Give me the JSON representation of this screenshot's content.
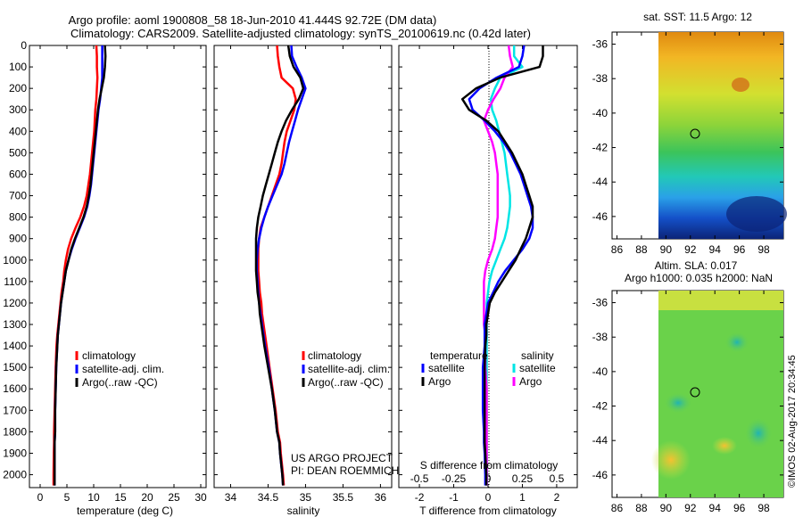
{
  "header": {
    "line1": "Argo profile: aoml 1900808_58 18-Jun-2010 41.444S 92.72E (DM data)",
    "line2": "Climatology: CARS2009. Satellite-adjusted climatology: synTS_20100619.nc (0.42d later)"
  },
  "colors": {
    "climatology": "#ff0000",
    "satellite": "#0000ff",
    "argo": "#000000",
    "sal_satellite": "#00e5e5",
    "sal_argo": "#ff00ff"
  },
  "y_axis": {
    "ticks": [
      0,
      100,
      200,
      300,
      400,
      500,
      600,
      700,
      800,
      900,
      1000,
      1100,
      1200,
      1300,
      1400,
      1500,
      1600,
      1700,
      1800,
      1900,
      2000
    ]
  },
  "panels": {
    "temperature": {
      "xlabel": "temperature (deg C)",
      "xticks": [
        "0",
        "5",
        "10",
        "15",
        "20",
        "25",
        "30"
      ],
      "legend": [
        "climatology",
        "satellite-adj. clim.",
        "Argo(..raw -QC)"
      ]
    },
    "salinity": {
      "xlabel": "salinity",
      "xticks": [
        "34",
        "34.5",
        "35",
        "35.5",
        "36"
      ],
      "legend": [
        "climatology",
        "satellite-adj. clim.",
        "Argo(..raw -QC)"
      ],
      "credit1": "US ARGO PROJECT",
      "credit2": "PI: DEAN ROEMMICH"
    },
    "difference": {
      "xlabel": "T difference from climatology",
      "xticks": [
        "-2",
        "-1",
        "0",
        "1",
        "2"
      ],
      "top_label": "S difference from climatology",
      "top_ticks": [
        "-0.5",
        "-0.25",
        "0",
        "0.25",
        "0.5"
      ],
      "legend_t_title": "temperature",
      "legend_s_title": "salinity",
      "legend_t": [
        "satellite",
        "Argo"
      ],
      "legend_s": [
        "satellite",
        "Argo"
      ]
    }
  },
  "maps": {
    "sst": {
      "title": "sat. SST: 11.5 Argo: 12"
    },
    "sla": {
      "title1": "Altim. SLA: 0.017",
      "title2": "Argo h1000: 0.035 h2000: NaN"
    },
    "yticks": [
      "-36",
      "-38",
      "-40",
      "-42",
      "-44",
      "-46"
    ],
    "xticks": [
      "86",
      "88",
      "90",
      "92",
      "94",
      "96",
      "98"
    ],
    "profile_location": {
      "lon": 92.72,
      "lat": -41.444
    }
  },
  "footer_stamp": "©IMOS 02-Aug-2017 20:34:45",
  "chart_data": [
    {
      "type": "line",
      "title": "",
      "xlabel": "temperature (deg C)",
      "ylabel": "",
      "xlim": [
        -2,
        31
      ],
      "ylim": [
        2060,
        0
      ],
      "series": [
        {
          "name": "climatology",
          "x": [
            10.5,
            10.6,
            10.6,
            10.7,
            10.6,
            10.5,
            10.3,
            10.2,
            10.1,
            9.9,
            9.7,
            9.5,
            9.3,
            9.0,
            8.7,
            8.2,
            7.5,
            6.6,
            5.8,
            5.2,
            4.8,
            4.5,
            4.3,
            4.0,
            3.8,
            3.6,
            3.4,
            3.2,
            3.05,
            2.9,
            2.8,
            2.7,
            2.6,
            2.6,
            2.55,
            2.5,
            2.5
          ],
          "y": [
            0,
            50,
            100,
            150,
            200,
            250,
            300,
            350,
            400,
            450,
            500,
            550,
            600,
            650,
            700,
            750,
            800,
            850,
            900,
            950,
            1000,
            1050,
            1100,
            1150,
            1200,
            1250,
            1300,
            1350,
            1400,
            1500,
            1600,
            1700,
            1800,
            1850,
            1900,
            2000,
            2050
          ]
        },
        {
          "name": "satellite-adj. clim.",
          "x": [
            11.6,
            11.6,
            11.6,
            11.6,
            11.4,
            11.2,
            10.9,
            10.7,
            10.5,
            10.3,
            10.1,
            9.9,
            9.7,
            9.5,
            9.2,
            8.8,
            8.2,
            7.4,
            6.6,
            5.9,
            5.3,
            4.8,
            4.5,
            4.2,
            3.9,
            3.7,
            3.5,
            3.3,
            3.2,
            3.0,
            2.9,
            2.8,
            2.8,
            2.7,
            2.7,
            2.7,
            2.7
          ],
          "y": [
            0,
            50,
            100,
            150,
            200,
            250,
            300,
            350,
            400,
            450,
            500,
            550,
            600,
            650,
            700,
            750,
            800,
            850,
            900,
            950,
            1000,
            1050,
            1100,
            1150,
            1200,
            1250,
            1300,
            1350,
            1400,
            1500,
            1600,
            1700,
            1800,
            1850,
            1900,
            2000,
            2050
          ]
        },
        {
          "name": "Argo(..raw -QC)",
          "x": [
            12.1,
            12.2,
            12.1,
            11.9,
            11.5,
            11.1,
            10.8,
            10.6,
            10.4,
            10.2,
            10.0,
            9.8,
            9.6,
            9.4,
            9.1,
            8.7,
            8.1,
            7.3,
            6.5,
            5.8,
            5.3,
            4.8,
            4.5,
            4.2,
            3.9,
            3.7,
            3.5,
            3.3,
            3.2,
            3.0,
            2.9,
            2.8,
            2.8,
            2.7,
            2.7,
            2.7,
            2.7
          ],
          "y": [
            0,
            50,
            100,
            150,
            200,
            250,
            300,
            350,
            400,
            450,
            500,
            550,
            600,
            650,
            700,
            750,
            800,
            850,
            900,
            950,
            1000,
            1050,
            1100,
            1150,
            1200,
            1250,
            1300,
            1350,
            1400,
            1500,
            1600,
            1700,
            1800,
            1850,
            1900,
            2000,
            2050
          ]
        }
      ]
    },
    {
      "type": "line",
      "title": "",
      "xlabel": "salinity",
      "ylabel": "",
      "xlim": [
        33.78,
        36.15
      ],
      "ylim": [
        2060,
        0
      ],
      "series": [
        {
          "name": "climatology",
          "x": [
            34.62,
            34.63,
            34.65,
            34.68,
            34.83,
            34.87,
            34.85,
            34.8,
            34.75,
            34.72,
            34.7,
            34.68,
            34.65,
            34.6,
            34.55,
            34.5,
            34.45,
            34.4,
            34.38,
            34.37,
            34.37,
            34.37,
            34.38,
            34.39,
            34.41,
            34.42,
            34.44,
            34.46,
            34.48,
            34.52,
            34.56,
            34.6,
            34.63,
            34.66,
            34.67,
            34.7,
            34.71
          ],
          "y": [
            0,
            50,
            100,
            150,
            200,
            250,
            300,
            350,
            400,
            450,
            500,
            550,
            600,
            650,
            700,
            750,
            800,
            850,
            900,
            950,
            1000,
            1050,
            1100,
            1150,
            1200,
            1250,
            1300,
            1350,
            1400,
            1500,
            1600,
            1700,
            1800,
            1850,
            1900,
            2000,
            2050
          ]
        },
        {
          "name": "satellite-adj. clim.",
          "x": [
            34.81,
            34.82,
            34.88,
            34.95,
            35.0,
            34.95,
            34.9,
            34.86,
            34.82,
            34.78,
            34.75,
            34.72,
            34.68,
            34.62,
            34.56,
            34.5,
            34.45,
            34.41,
            34.38,
            34.36,
            34.35,
            34.35,
            34.36,
            34.37,
            34.38,
            34.4,
            34.42,
            34.44,
            34.46,
            34.51,
            34.55,
            34.59,
            34.62,
            34.65,
            34.66,
            34.69,
            34.7
          ],
          "y": [
            0,
            50,
            100,
            150,
            200,
            250,
            300,
            350,
            400,
            450,
            500,
            550,
            600,
            650,
            700,
            750,
            800,
            850,
            900,
            950,
            1000,
            1050,
            1100,
            1150,
            1200,
            1250,
            1300,
            1350,
            1400,
            1500,
            1600,
            1700,
            1800,
            1850,
            1900,
            2000,
            2050
          ]
        },
        {
          "name": "Argo(..raw -QC)",
          "x": [
            34.77,
            34.79,
            34.84,
            34.93,
            34.97,
            34.91,
            34.82,
            34.74,
            34.68,
            34.63,
            34.59,
            34.55,
            34.51,
            34.47,
            34.43,
            34.4,
            34.37,
            34.35,
            34.34,
            34.34,
            34.34,
            34.34,
            34.35,
            34.36,
            34.38,
            34.39,
            34.41,
            34.43,
            34.45,
            34.5,
            34.55,
            34.59,
            34.62,
            34.65,
            34.66,
            34.69,
            34.7
          ],
          "y": [
            0,
            50,
            100,
            150,
            200,
            250,
            300,
            350,
            400,
            450,
            500,
            550,
            600,
            650,
            700,
            750,
            800,
            850,
            900,
            950,
            1000,
            1050,
            1100,
            1150,
            1200,
            1250,
            1300,
            1350,
            1400,
            1500,
            1600,
            1700,
            1800,
            1850,
            1900,
            2000,
            2050
          ]
        }
      ]
    },
    {
      "type": "line",
      "title": "",
      "xlabel": "T difference from climatology",
      "ylabel": "",
      "xlim": [
        -2.6,
        2.6
      ],
      "ylim": [
        2060,
        0
      ],
      "series": [
        {
          "name": "satellite",
          "x": [
            1.05,
            1.0,
            0.9,
            0.25,
            -0.25,
            -0.55,
            -0.45,
            -0.1,
            0.2,
            0.45,
            0.65,
            0.8,
            0.95,
            1.05,
            1.15,
            1.25,
            1.3,
            1.3,
            1.2,
            1.0,
            0.75,
            0.5,
            0.3,
            0.15,
            0.0,
            -0.05,
            -0.1,
            -0.1,
            -0.1,
            -0.15,
            -0.15,
            -0.15,
            -0.12,
            -0.12,
            -0.1,
            -0.08,
            -0.08
          ],
          "y": [
            0,
            50,
            100,
            150,
            200,
            250,
            300,
            350,
            400,
            450,
            500,
            550,
            600,
            650,
            700,
            750,
            800,
            850,
            900,
            950,
            1000,
            1050,
            1100,
            1150,
            1200,
            1250,
            1300,
            1350,
            1400,
            1500,
            1600,
            1700,
            1800,
            1850,
            1900,
            2000,
            2050
          ]
        },
        {
          "name": "Argo",
          "x": [
            1.6,
            1.6,
            1.5,
            0.35,
            -0.35,
            -0.75,
            -0.55,
            -0.05,
            0.3,
            0.5,
            0.7,
            0.85,
            1.0,
            1.1,
            1.2,
            1.3,
            1.3,
            1.2,
            1.1,
            0.95,
            0.8,
            0.6,
            0.4,
            0.2,
            0.05,
            0.0,
            -0.05,
            -0.05,
            -0.08,
            -0.1,
            -0.1,
            -0.1,
            -0.1,
            -0.1,
            -0.08,
            -0.05,
            -0.05
          ],
          "y": [
            0,
            50,
            100,
            150,
            200,
            250,
            300,
            350,
            400,
            450,
            500,
            550,
            600,
            650,
            700,
            750,
            800,
            850,
            900,
            950,
            1000,
            1050,
            1100,
            1150,
            1200,
            1250,
            1300,
            1350,
            1400,
            1500,
            1600,
            1700,
            1800,
            1850,
            1900,
            2000,
            2050
          ]
        }
      ]
    },
    {
      "type": "line",
      "title": "",
      "xlabel": "S difference from climatology",
      "ylabel": "",
      "xlim": [
        -0.65,
        0.65
      ],
      "ylim": [
        2060,
        0
      ],
      "series": [
        {
          "name": "satellite",
          "x": [
            0.19,
            0.19,
            0.25,
            0.09,
            0.05,
            0.02,
            0.03,
            0.06,
            0.08,
            0.1,
            0.12,
            0.13,
            0.14,
            0.15,
            0.16,
            0.16,
            0.15,
            0.14,
            0.12,
            0.09,
            0.06,
            0.03,
            0.01,
            0.0,
            -0.01,
            -0.01,
            -0.01,
            -0.01,
            -0.01,
            -0.01,
            -0.01,
            -0.01,
            -0.01,
            -0.01,
            -0.01,
            -0.01,
            -0.01
          ],
          "y": [
            0,
            50,
            100,
            150,
            200,
            250,
            300,
            350,
            400,
            450,
            500,
            550,
            600,
            650,
            700,
            750,
            800,
            850,
            900,
            950,
            1000,
            1050,
            1100,
            1150,
            1200,
            1250,
            1300,
            1350,
            1400,
            1500,
            1600,
            1700,
            1800,
            1850,
            1900,
            2000,
            2050
          ]
        },
        {
          "name": "Argo",
          "x": [
            0.15,
            0.16,
            0.18,
            0.12,
            0.09,
            0.04,
            0.0,
            -0.03,
            0.0,
            0.03,
            0.05,
            0.06,
            0.07,
            0.07,
            0.07,
            0.07,
            0.07,
            0.06,
            0.05,
            0.03,
            0.0,
            -0.02,
            -0.03,
            -0.03,
            -0.03,
            -0.03,
            -0.03,
            -0.02,
            -0.02,
            -0.02,
            -0.01,
            -0.01,
            -0.01,
            -0.01,
            -0.01,
            -0.01,
            -0.01
          ],
          "y": [
            0,
            50,
            100,
            150,
            200,
            250,
            300,
            350,
            400,
            450,
            500,
            550,
            600,
            650,
            700,
            750,
            800,
            850,
            900,
            950,
            1000,
            1050,
            1100,
            1150,
            1200,
            1250,
            1300,
            1350,
            1400,
            1500,
            1600,
            1700,
            1800,
            1850,
            1900,
            2000,
            2050
          ]
        }
      ]
    }
  ]
}
